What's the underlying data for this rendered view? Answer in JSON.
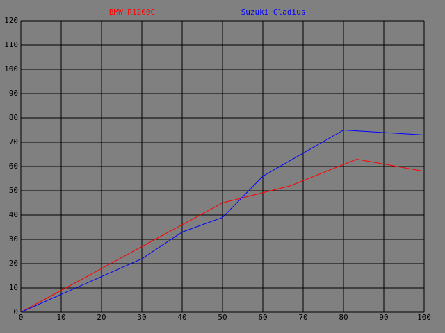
{
  "chart_data": {
    "type": "line",
    "series": [
      {
        "name": "BMW R1200C",
        "color": "#ff0000",
        "x": [
          0,
          16.7,
          33.3,
          50,
          66.7,
          83.3,
          100
        ],
        "values": [
          0,
          15,
          30,
          45,
          52,
          63,
          58
        ]
      },
      {
        "name": "Suzuki Gladius",
        "color": "#0000ff",
        "x": [
          0,
          30,
          40,
          50,
          60,
          80,
          100
        ],
        "values": [
          0,
          22,
          33,
          39,
          56,
          75,
          73
        ]
      }
    ],
    "xlim": [
      0,
      100
    ],
    "xticks": [
      0,
      10,
      20,
      30,
      40,
      50,
      60,
      70,
      80,
      90,
      100
    ],
    "ylim": [
      0,
      120
    ],
    "yticks": [
      0,
      10,
      20,
      30,
      40,
      50,
      60,
      70,
      80,
      90,
      100,
      110,
      120
    ],
    "grid": true,
    "background": "#808080",
    "grid_color": "#000000"
  }
}
